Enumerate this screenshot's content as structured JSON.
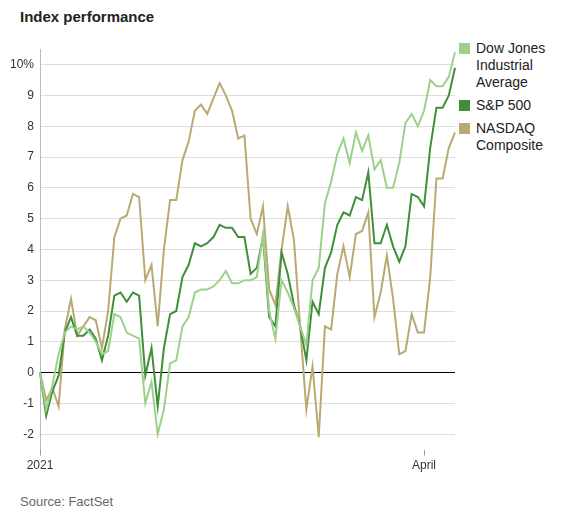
{
  "chart_data": {
    "type": "line",
    "title": "Index performance",
    "source": "Source: FactSet",
    "categories": [
      "2021",
      null,
      null,
      null,
      null,
      null,
      null,
      null,
      null,
      null,
      null,
      null,
      null,
      null,
      null,
      null,
      null,
      null,
      null,
      null,
      null,
      null,
      null,
      null,
      null,
      null,
      null,
      null,
      null,
      null,
      null,
      null,
      null,
      null,
      null,
      null,
      null,
      null,
      null,
      null,
      null,
      null,
      null,
      null,
      null,
      null,
      null,
      null,
      null,
      null,
      null,
      null,
      null,
      null,
      null,
      null,
      null,
      null,
      null,
      null,
      null,
      null,
      "April",
      null,
      null,
      null,
      null,
      null
    ],
    "series": [
      {
        "name": "Dow Jones Industrial Average",
        "color": "#9dd18b",
        "values": [
          0,
          -1.2,
          -0.4,
          0.6,
          1.3,
          1.5,
          1.4,
          1.5,
          1.3,
          1.0,
          0.6,
          0.7,
          1.9,
          1.8,
          1.3,
          1.2,
          1.1,
          -1.0,
          -0.3,
          -2.0,
          -1.2,
          0.3,
          0.4,
          1.5,
          1.8,
          2.6,
          2.7,
          2.7,
          2.8,
          3.0,
          3.3,
          2.9,
          2.9,
          3.0,
          3.0,
          3.1,
          4.5,
          2.0,
          1.1,
          3.0,
          2.6,
          2.1,
          1.5,
          0.9,
          3.0,
          3.4,
          5.5,
          6.2,
          7.1,
          7.6,
          6.8,
          7.8,
          7.2,
          7.7,
          6.6,
          6.9,
          6.0,
          6.0,
          6.8,
          8.1,
          8.4,
          8.0,
          8.5,
          9.5,
          9.3,
          9.3,
          9.6,
          10.4
        ]
      },
      {
        "name": "S&P 500",
        "color": "#3f8f3a",
        "values": [
          0,
          -1.4,
          -0.6,
          -0.1,
          1.3,
          1.8,
          1.2,
          1.2,
          1.4,
          1.1,
          0.4,
          1.2,
          2.5,
          2.6,
          2.3,
          2.6,
          2.5,
          -0.1,
          0.8,
          -1.1,
          0.8,
          1.9,
          2.0,
          3.1,
          3.5,
          4.2,
          4.1,
          4.2,
          4.4,
          4.8,
          4.7,
          4.7,
          4.4,
          4.4,
          3.2,
          3.4,
          4.4,
          1.8,
          1.5,
          3.9,
          3.2,
          2.2,
          1.5,
          0.4,
          2.3,
          1.9,
          3.4,
          3.9,
          4.8,
          5.2,
          5.1,
          5.7,
          5.6,
          6.5,
          4.2,
          4.2,
          4.8,
          4.1,
          3.6,
          4.1,
          5.8,
          5.7,
          5.4,
          7.3,
          8.6,
          8.6,
          9.0,
          9.9
        ]
      },
      {
        "name": "NASDAQ Composite",
        "color": "#b8aa72",
        "values": [
          0,
          -0.9,
          -0.5,
          -1.1,
          1.4,
          2.4,
          1.2,
          1.5,
          1.8,
          1.7,
          0.8,
          2.0,
          4.4,
          5.0,
          5.1,
          5.8,
          5.7,
          3.0,
          3.5,
          1.5,
          4.0,
          5.6,
          5.6,
          6.9,
          7.5,
          8.5,
          8.7,
          8.4,
          8.9,
          9.4,
          9.0,
          8.5,
          7.6,
          7.7,
          5.0,
          4.5,
          5.4,
          2.7,
          2.2,
          4.0,
          5.4,
          4.3,
          1.5,
          -1.2,
          0.2,
          -2.1,
          1.5,
          1.4,
          3.2,
          4.1,
          3.1,
          4.5,
          4.6,
          5.2,
          1.8,
          2.6,
          3.8,
          2.4,
          0.6,
          0.7,
          1.9,
          1.3,
          1.3,
          3.1,
          6.3,
          6.3,
          7.3,
          7.8
        ]
      }
    ],
    "ylim": [
      -2.5,
      10.5
    ],
    "yticks": [
      -2,
      -1,
      0,
      1,
      2,
      3,
      4,
      5,
      6,
      7,
      8,
      9,
      {
        "value": 10,
        "label": "10%"
      }
    ],
    "grid": true,
    "legend": "right"
  }
}
